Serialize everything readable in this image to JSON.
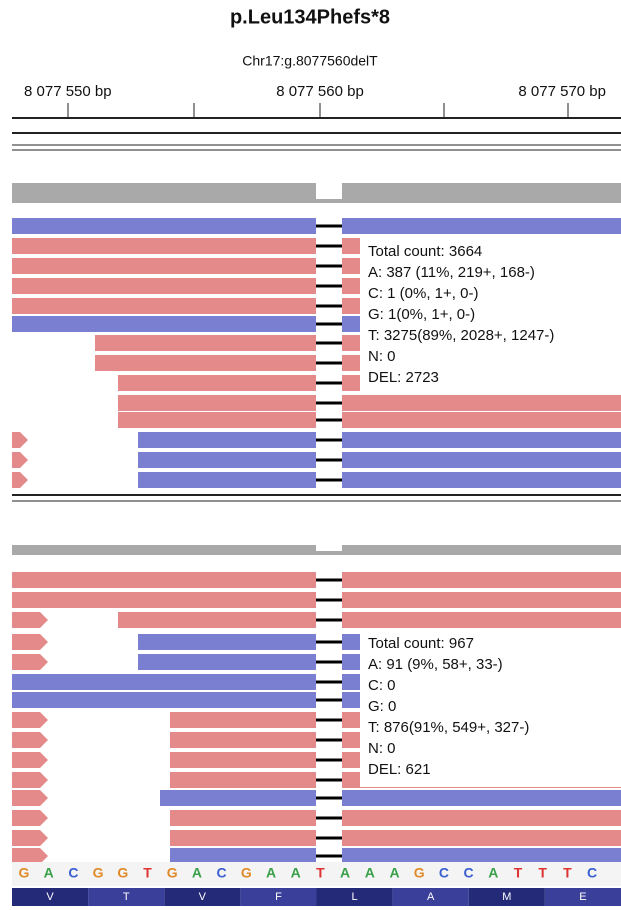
{
  "header": {
    "title": "p.Leu134Phefs*8",
    "subtitle": "Chr17:g.8077560delT"
  },
  "ruler": {
    "labels": [
      "8 077 550 bp",
      "8 077 560 bp",
      "8 077 570 bp"
    ]
  },
  "panels": [
    {
      "tooltip": [
        "Total count: 3664",
        "A: 387 (11%, 219+, 168-)",
        "C: 1 (0%, 1+, 0-)",
        "G: 1(0%, 1+, 0-)",
        "T: 3275(89%, 2028+, 1247-)",
        "N: 0",
        "DEL: 2723"
      ]
    },
    {
      "tooltip": [
        "Total count: 967",
        "A: 91 (9%, 58+, 33-)",
        "C: 0",
        "G: 0",
        "T: 876(91%, 549+, 327-)",
        "N: 0",
        "DEL: 621"
      ]
    }
  ],
  "sequence": [
    "G",
    "A",
    "C",
    "G",
    "G",
    "T",
    "G",
    "A",
    "C",
    "G",
    "A",
    "A",
    "T",
    "A",
    "A",
    "A",
    "G",
    "C",
    "C",
    "A",
    "T",
    "T",
    "T",
    "C"
  ],
  "amino_acids": [
    "V",
    "T",
    "V",
    "F",
    "L",
    "A",
    "M",
    "E"
  ]
}
